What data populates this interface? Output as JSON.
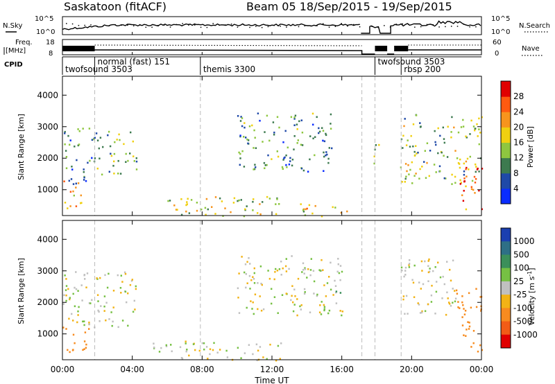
{
  "title": {
    "station": "Saskatoon (fitACF)",
    "beam_and_dates": "Beam 05   18/Sep/2015 - 19/Sep/2015"
  },
  "time_axis": {
    "label": "Time UT",
    "ticks": [
      "00:00",
      "04:00",
      "08:00",
      "12:00",
      "16:00",
      "20:00",
      "00:00"
    ],
    "tick_hours": [
      0,
      4,
      8,
      12,
      16,
      20,
      24
    ],
    "range_hours": [
      0,
      24
    ]
  },
  "noise_panel": {
    "left_label": "N.Sky",
    "right_label": "N.Search",
    "left_ticks": [
      "10^5",
      "10^0"
    ],
    "right_ticks": [
      "10^5",
      "10^0"
    ]
  },
  "freq_panel": {
    "left_label_line1": "Freq.",
    "left_label_line2": "[MHz]",
    "right_label": "Nave",
    "left_ticks": [
      "18",
      "8"
    ],
    "right_ticks": [
      "60",
      "0"
    ]
  },
  "cpid_panel": {
    "label": "CPID",
    "modes": [
      {
        "name": "twofsound 3503",
        "start_hour": 0.0,
        "end_hour": 1.85
      },
      {
        "name": "normal (fast) 151",
        "start_hour": 1.85,
        "end_hour": 7.9
      },
      {
        "name": "themis 3300",
        "start_hour": 7.9,
        "end_hour": 17.15
      },
      {
        "name": "twofsound 3503",
        "start_hour": 17.9,
        "end_hour": 19.4
      },
      {
        "name": "rbsp 200",
        "start_hour": 19.4,
        "end_hour": 24.0
      }
    ]
  },
  "range_axis": {
    "label": "Slant Range [km]",
    "ticks": [
      "1000",
      "2000",
      "3000",
      "4000"
    ],
    "tick_values": [
      1000,
      2000,
      3000,
      4000
    ],
    "range_km": [
      180,
      4600
    ]
  },
  "power_colorbar": {
    "label": "Power [dB]",
    "tick_labels": [
      "4",
      "8",
      "12",
      "16",
      "20",
      "24",
      "28"
    ],
    "colors": [
      "#0a2cff",
      "#1f49a8",
      "#3d7a4f",
      "#8ec63f",
      "#f0d010",
      "#f7941d",
      "#ff5a10",
      "#e00000"
    ]
  },
  "velocity_colorbar": {
    "label": "Velocity [m s",
    "label_superscript": "-1",
    "label_tail": "]",
    "tick_labels": [
      "1000",
      "500",
      "100",
      "25",
      "-25",
      "-100",
      "-500",
      "-1000"
    ],
    "colors": [
      "#1b3fb0",
      "#2e6f86",
      "#3c8f5a",
      "#76c043",
      "#c0c0c0",
      "#f2b316",
      "#f78b1f",
      "#f25c16",
      "#e00000"
    ]
  },
  "chart_data": [
    {
      "type": "heatmap",
      "title": "Power",
      "xlabel": "Time UT",
      "ylabel": "Slant Range [km]",
      "zlabel": "Power [dB]",
      "xlim": [
        0,
        24
      ],
      "ylim": [
        180,
        4600
      ],
      "zlim": [
        0,
        30
      ],
      "clusters": [
        {
          "t0": 0.0,
          "t1": 1.3,
          "r0": 400,
          "r1": 1300,
          "value": 22
        },
        {
          "t0": 0.0,
          "t1": 1.8,
          "r0": 1200,
          "r1": 3000,
          "value": 10
        },
        {
          "t0": 1.8,
          "t1": 4.3,
          "r0": 1500,
          "r1": 2900,
          "value": 12
        },
        {
          "t0": 5.0,
          "t1": 12.5,
          "r0": 180,
          "r1": 800,
          "value": 16
        },
        {
          "t0": 10.0,
          "t1": 15.5,
          "r0": 1600,
          "r1": 3500,
          "value": 10
        },
        {
          "t0": 13.5,
          "t1": 16.8,
          "r0": 180,
          "r1": 600,
          "value": 18
        },
        {
          "t0": 17.6,
          "t1": 18.1,
          "r0": 1600,
          "r1": 2500,
          "value": 12
        },
        {
          "t0": 19.3,
          "t1": 24.0,
          "r0": 1200,
          "r1": 3400,
          "value": 14
        },
        {
          "t0": 22.6,
          "t1": 24.0,
          "r0": 400,
          "r1": 2000,
          "value": 26
        }
      ]
    },
    {
      "type": "heatmap",
      "title": "Velocity",
      "xlabel": "Time UT",
      "ylabel": "Slant Range [km]",
      "zlabel": "Velocity [m s-1]",
      "xlim": [
        0,
        24
      ],
      "ylim": [
        180,
        4600
      ],
      "zlim": [
        -1000,
        1000
      ],
      "clusters": [
        {
          "t0": 0.0,
          "t1": 1.5,
          "r0": 400,
          "r1": 1300,
          "value": -150
        },
        {
          "t0": 0.0,
          "t1": 4.3,
          "r0": 1200,
          "r1": 3000,
          "value": 0
        },
        {
          "t0": 5.0,
          "t1": 12.5,
          "r0": 180,
          "r1": 800,
          "value": 0
        },
        {
          "t0": 10.0,
          "t1": 16.0,
          "r0": 1600,
          "r1": 3500,
          "value": 0
        },
        {
          "t0": 15.6,
          "t1": 16.0,
          "r0": 2200,
          "r1": 2600,
          "value": 300
        },
        {
          "t0": 19.3,
          "t1": 22.5,
          "r0": 1500,
          "r1": 3400,
          "value": -20
        },
        {
          "t0": 22.5,
          "t1": 24.0,
          "r0": 400,
          "r1": 2500,
          "value": -300
        }
      ]
    }
  ]
}
